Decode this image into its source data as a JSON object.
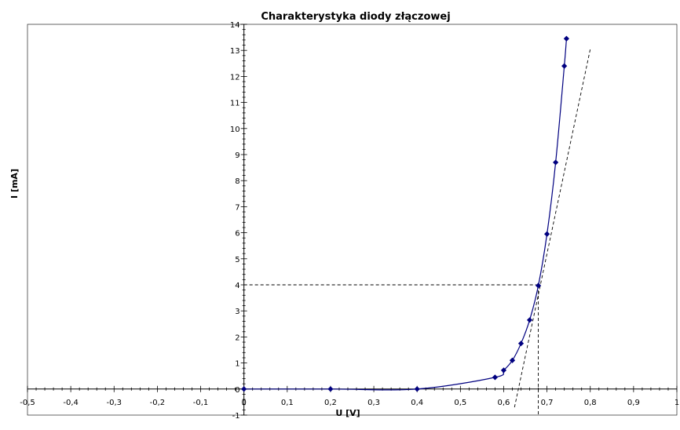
{
  "chart_data": {
    "type": "scatter",
    "title": "Charakterystyka diody złączowej",
    "xlabel": "U [V]",
    "ylabel": "I [mA]",
    "xlim": [
      -0.5,
      1
    ],
    "ylim": [
      -1,
      14
    ],
    "x_ticks": [
      -0.5,
      -0.4,
      -0.3,
      -0.2,
      -0.1,
      0,
      0.1,
      0.2,
      0.3,
      0.4,
      0.5,
      0.6,
      0.7,
      0.8,
      0.9,
      1
    ],
    "x_tick_labels": [
      "-0,5",
      "-0,4",
      "-0,3",
      "-0,2",
      "-0,1",
      "0",
      "0,1",
      "0,2",
      "0,3",
      "0,4",
      "0,5",
      "0,6",
      "0,7",
      "0,8",
      "0,9",
      "1"
    ],
    "y_ticks": [
      -1,
      0,
      1,
      2,
      3,
      4,
      5,
      6,
      7,
      8,
      9,
      10,
      11,
      12,
      13,
      14
    ],
    "y_tick_labels": [
      "-1",
      "0",
      "1",
      "2",
      "3",
      "4",
      "5",
      "6",
      "7",
      "8",
      "9",
      "10",
      "11",
      "12",
      "13",
      "14"
    ],
    "series": [
      {
        "color": "#000080",
        "marker": "diamond",
        "line": "smooth",
        "points": [
          [
            0,
            0
          ],
          [
            0.2,
            0
          ],
          [
            0.4,
            0
          ],
          [
            0.58,
            0.45
          ],
          [
            0.6,
            0.72
          ],
          [
            0.62,
            1.1
          ],
          [
            0.64,
            1.75
          ],
          [
            0.66,
            2.65
          ],
          [
            0.68,
            3.97
          ],
          [
            0.7,
            5.95
          ],
          [
            0.72,
            8.7
          ],
          [
            0.74,
            12.4
          ],
          [
            0.745,
            13.45
          ]
        ]
      }
    ],
    "annotations": {
      "tangent_line": {
        "from": [
          0.625,
          -0.7
        ],
        "to": [
          0.8,
          13.05
        ],
        "style": "dashed",
        "color": "#000000"
      },
      "reference_point": {
        "x": 0.68,
        "y": 4,
        "style": "dashed",
        "color": "#000000"
      }
    },
    "grid": false,
    "legend": "none"
  }
}
